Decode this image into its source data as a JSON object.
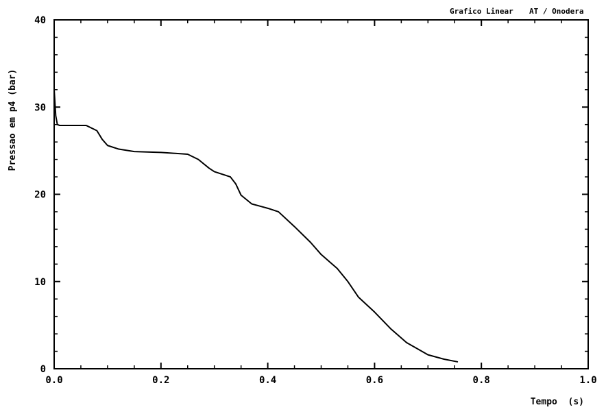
{
  "header": {
    "left_text": "Grafico Linear",
    "right_text": "AT / Onodera"
  },
  "chart_data": {
    "type": "line",
    "xlabel": "Tempo  (s)",
    "ylabel": "Pressao em p4 (bar)",
    "xlim": [
      0.0,
      1.0
    ],
    "ylim": [
      0,
      40
    ],
    "xticks": [
      0.0,
      0.2,
      0.4,
      0.6,
      0.8,
      1.0
    ],
    "xtick_labels": [
      "0.0",
      "0.2",
      "0.4",
      "0.6",
      "0.8",
      "1.0"
    ],
    "yticks": [
      0,
      10,
      20,
      30,
      40
    ],
    "ytick_labels": [
      "0",
      "10",
      "20",
      "30",
      "40"
    ],
    "minor_x_step": 0.05,
    "minor_y_step": 2,
    "grid": false,
    "legend": "none",
    "line_color": "#000000",
    "series": [
      {
        "x": [
          0.0,
          0.003,
          0.006,
          0.01,
          0.06,
          0.08,
          0.09,
          0.1,
          0.12,
          0.15,
          0.2,
          0.25,
          0.27,
          0.29,
          0.3,
          0.33,
          0.34,
          0.35,
          0.37,
          0.4,
          0.42,
          0.45,
          0.48,
          0.5,
          0.53,
          0.55,
          0.57,
          0.6,
          0.63,
          0.66,
          0.7,
          0.73,
          0.755
        ],
        "y": [
          32.0,
          29.0,
          28.0,
          27.9,
          27.9,
          27.3,
          26.3,
          25.6,
          25.2,
          24.9,
          24.8,
          24.6,
          24.0,
          23.0,
          22.6,
          22.0,
          21.2,
          19.9,
          18.9,
          18.4,
          18.0,
          16.3,
          14.5,
          13.1,
          11.5,
          10.0,
          8.2,
          6.5,
          4.6,
          3.0,
          1.6,
          1.1,
          0.8
        ]
      }
    ]
  }
}
